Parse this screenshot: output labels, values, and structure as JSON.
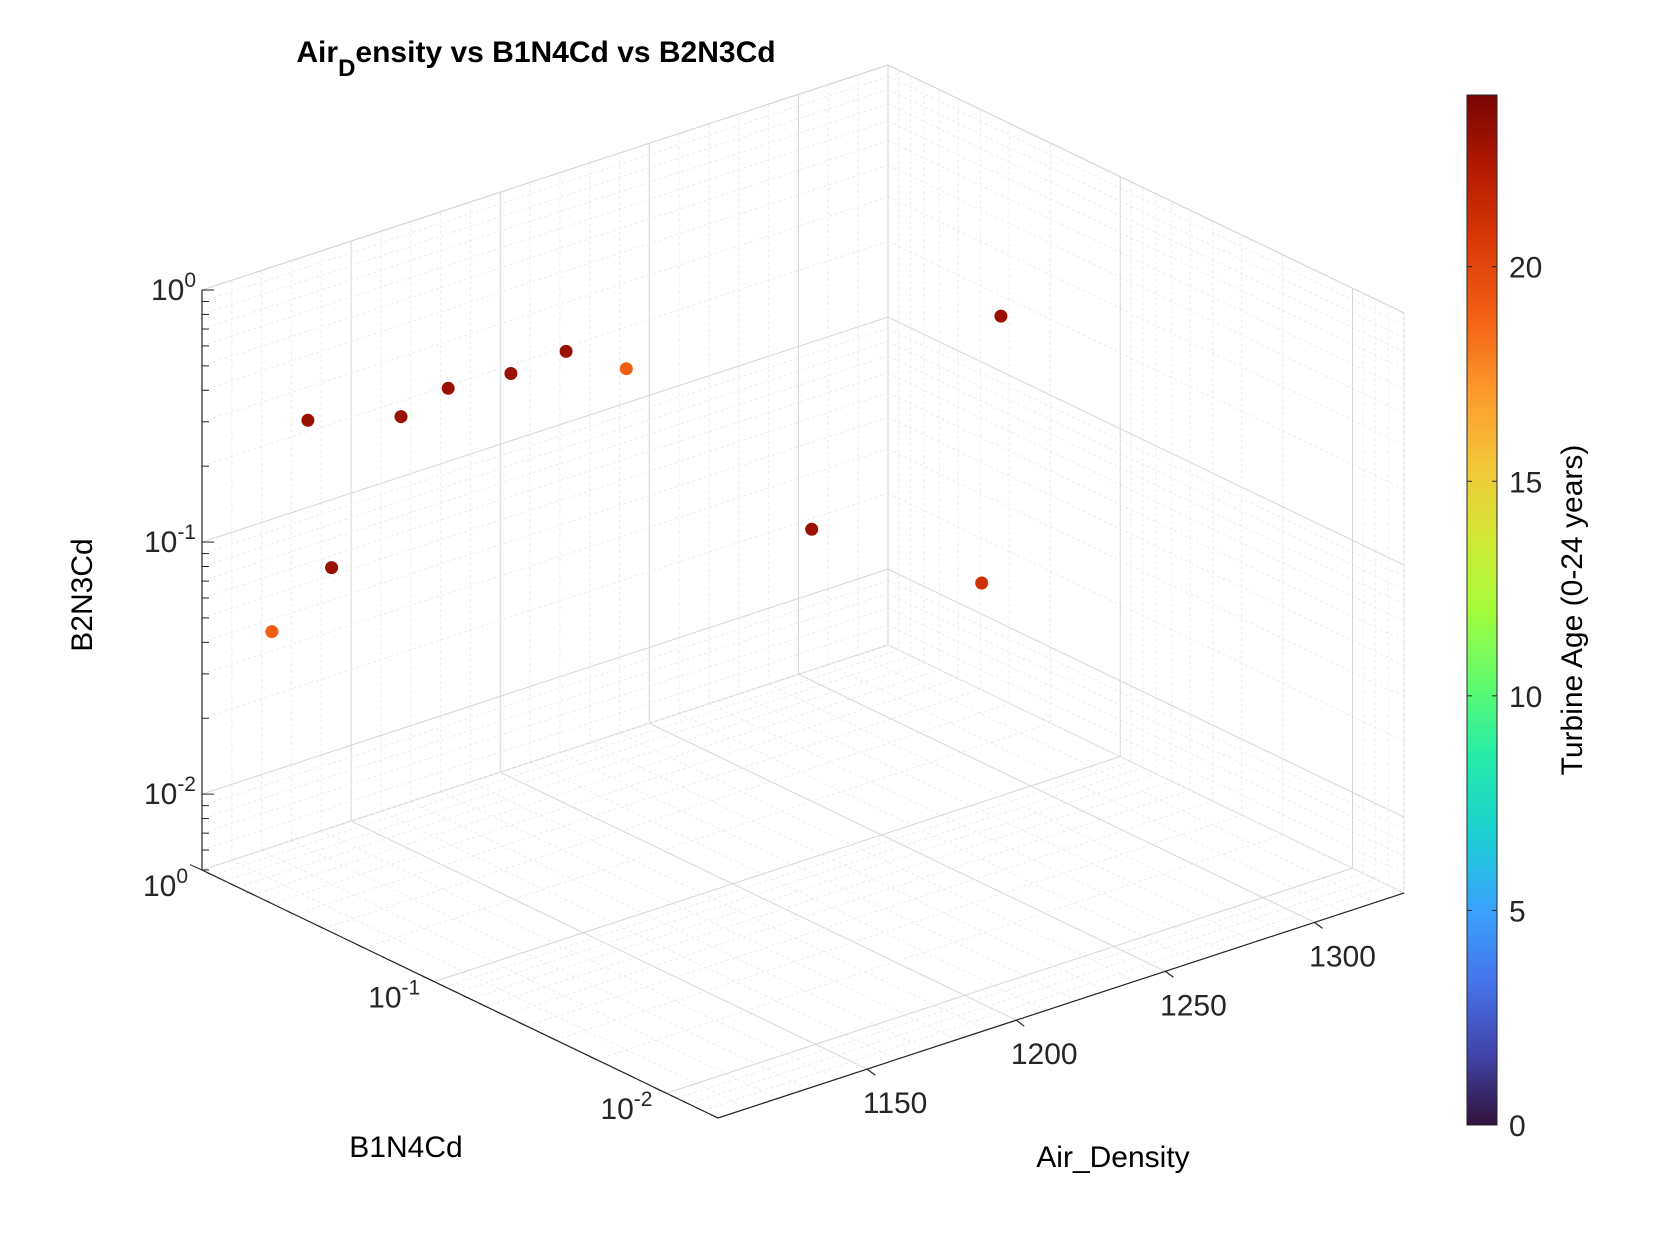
{
  "chart_data": {
    "type": "scatter",
    "title": {
      "prefix": "Air",
      "subscript": "D",
      "suffix": "ensity vs B1N4Cd vs B2N3Cd"
    },
    "xlabel": "Air_Density",
    "ylabel": "B1N4Cd",
    "zlabel": "B2N3Cd",
    "colorbar_label": "Turbine Age (0-24 years)",
    "xlim": [
      1100,
      1330
    ],
    "ylim": [
      0.006,
      1
    ],
    "zlim": [
      0.005,
      1
    ],
    "yscale": "log",
    "zscale": "log",
    "grid": true,
    "x_ticks": [
      {
        "value": 1150,
        "label": "1150"
      },
      {
        "value": 1200,
        "label": "1200"
      },
      {
        "value": 1250,
        "label": "1250"
      },
      {
        "value": 1300,
        "label": "1300"
      }
    ],
    "y_ticks": [
      {
        "value": 1,
        "base": "10",
        "exp": "0"
      },
      {
        "value": 0.1,
        "base": "10",
        "exp": "-1"
      },
      {
        "value": 0.01,
        "base": "10",
        "exp": "-2"
      }
    ],
    "z_ticks": [
      {
        "value": 1,
        "base": "10",
        "exp": "0"
      },
      {
        "value": 0.1,
        "base": "10",
        "exp": "-1"
      },
      {
        "value": 0.01,
        "base": "10",
        "exp": "-2"
      }
    ],
    "colorbar": {
      "min": 0,
      "max": 24,
      "ticks": [
        0,
        5,
        10,
        15,
        20
      ],
      "colormap": "turbo"
    },
    "marker_color_note": "color encodes Turbine Age",
    "points": [
      {
        "x": 1200,
        "y": 0.9,
        "z": 0.2,
        "c": 23
      },
      {
        "x": 1165,
        "y": 0.95,
        "z": 0.18,
        "c": 23
      },
      {
        "x": 1175,
        "y": 0.8,
        "z": 0.23,
        "c": 23
      },
      {
        "x": 1210,
        "y": 0.7,
        "z": 0.25,
        "c": 23
      },
      {
        "x": 1225,
        "y": 0.6,
        "z": 0.2,
        "c": 19
      },
      {
        "x": 1130,
        "y": 0.85,
        "z": 0.25,
        "c": 23
      },
      {
        "x": 1290,
        "y": 0.1,
        "z": 0.4,
        "c": 23
      },
      {
        "x": 1120,
        "y": 0.5,
        "z": 0.09,
        "c": 23
      },
      {
        "x": 1100,
        "y": 0.5,
        "z": 0.06,
        "c": 19
      },
      {
        "x": 1280,
        "y": 0.09,
        "z": 0.04,
        "c": 21
      },
      {
        "x": 1250,
        "y": 0.2,
        "z": 0.06,
        "c": 23
      }
    ]
  }
}
